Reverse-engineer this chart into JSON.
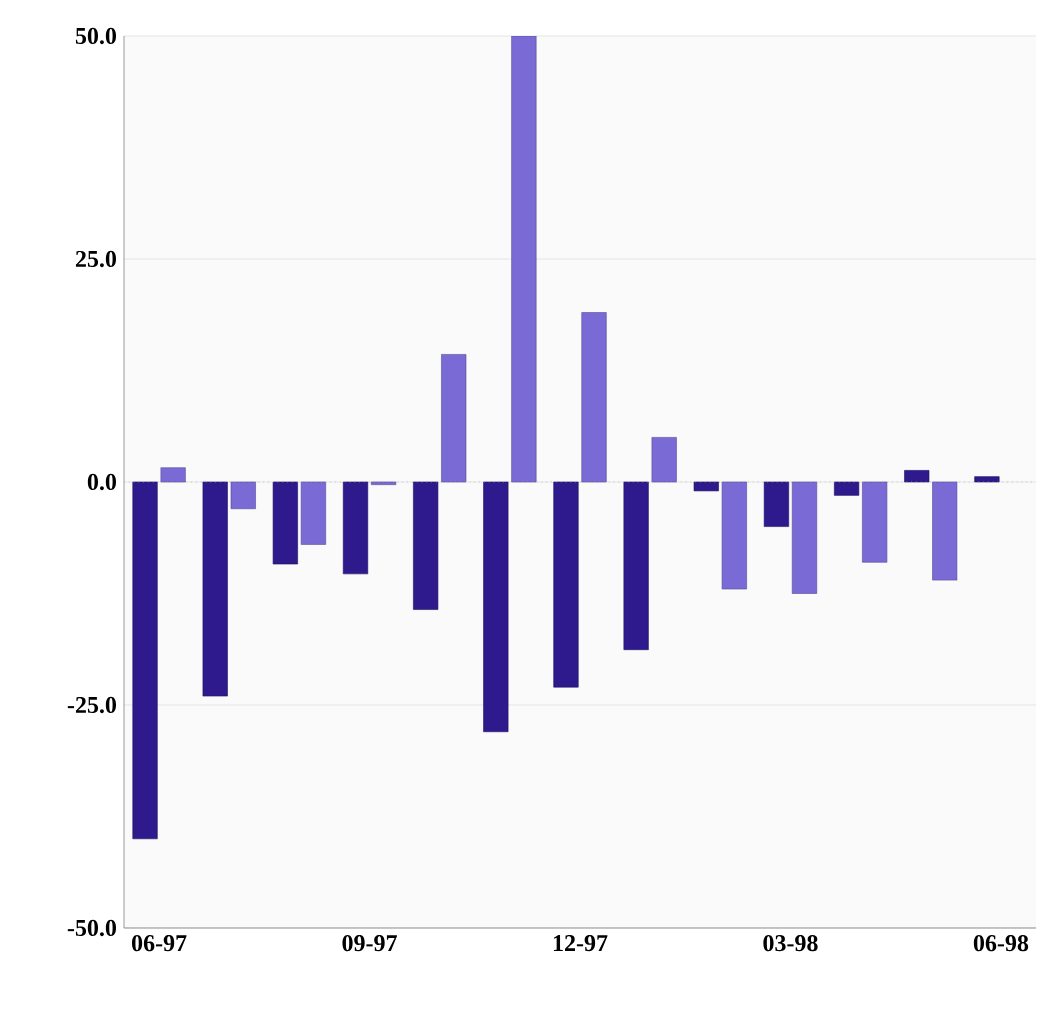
{
  "chart_data": {
    "type": "bar",
    "categories": [
      "06-97",
      null,
      null,
      "09-97",
      null,
      null,
      "12-97",
      null,
      null,
      "03-98",
      null,
      null,
      "06-98"
    ],
    "series": [
      {
        "color": "#2e1a8c",
        "values": [
          -40,
          -24,
          -9.2,
          -10.3,
          -14.3,
          -28,
          -23,
          -18.8,
          -1,
          -5,
          -1.5,
          1.3,
          0.6
        ]
      },
      {
        "color": "#7a6ad6",
        "values": [
          1.6,
          -3,
          -7,
          -0.3,
          14.3,
          50,
          19,
          5,
          -12,
          -12.5,
          -9,
          -11,
          null
        ]
      }
    ],
    "ylim": [
      -50,
      50
    ],
    "yticks": [
      {
        "value": -50,
        "label": "-50.0"
      },
      {
        "value": -25,
        "label": "-25.0"
      },
      {
        "value": 0,
        "label": "0.0"
      },
      {
        "value": 25,
        "label": "25.0"
      },
      {
        "value": 50,
        "label": "50.0"
      }
    ],
    "ref_lines": [
      {
        "axis": "y",
        "value": 0,
        "color": "#b2b2b2",
        "line_style": "dotted"
      }
    ],
    "grid": "y"
  }
}
